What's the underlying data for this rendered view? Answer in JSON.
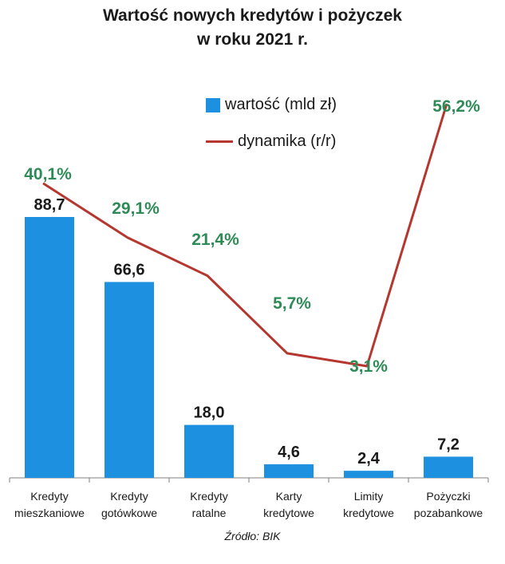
{
  "chart_data": {
    "type": "bar",
    "title_line1": "Wartość nowych kredytów i pożyczek",
    "title_line2": "w roku 2021 r.",
    "categories": [
      [
        "Kredyty",
        "mieszkaniowe"
      ],
      [
        "Kredyty",
        "gotówkowe"
      ],
      [
        "Kredyty",
        "ratalne"
      ],
      [
        "Karty",
        "kredytowe"
      ],
      [
        "Limity",
        "kredytowe"
      ],
      [
        "Pożyczki",
        "pozabankowe"
      ]
    ],
    "series": [
      {
        "name": "wartość (mld zł)",
        "type": "bar",
        "values": [
          88.7,
          66.6,
          18.0,
          4.6,
          2.4,
          7.2
        ],
        "labels": [
          "88,7",
          "66,6",
          "18,0",
          "4,6",
          "2,4",
          "7,2"
        ],
        "color": "#1e90e0"
      },
      {
        "name": "dynamika (r/r)",
        "type": "line",
        "values": [
          40.1,
          29.1,
          21.4,
          5.7,
          3.1,
          56.2
        ],
        "labels": [
          "40,1%",
          "29,1%",
          "21,4%",
          "5,7%",
          "3,1%",
          "56,2%"
        ],
        "color": "#b5372f",
        "label_color": "#2e8b57"
      }
    ],
    "legend_position": "top-right",
    "grid": false,
    "source": "Źródło: BIK"
  }
}
